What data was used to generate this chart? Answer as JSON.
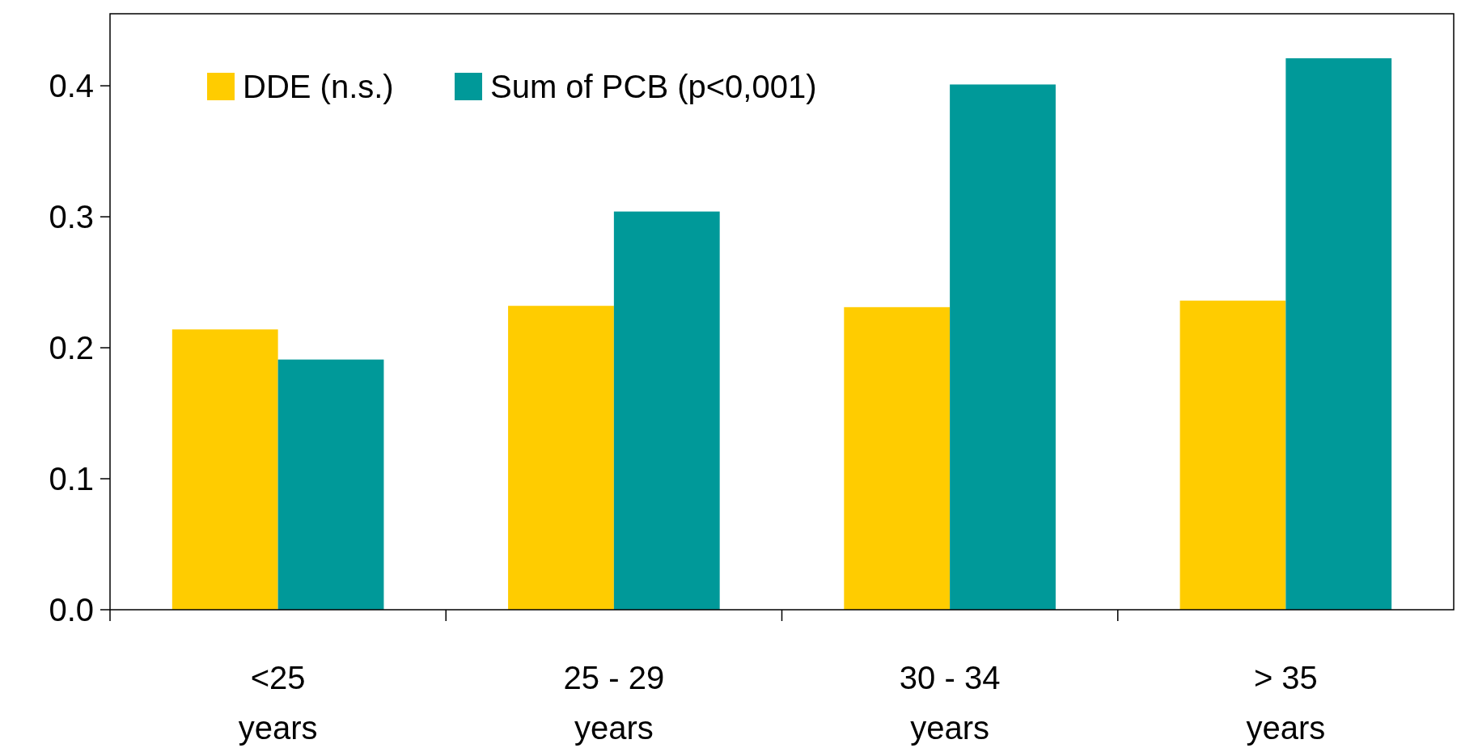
{
  "chart_data": {
    "type": "bar",
    "categories": [
      "<25 years",
      "25 - 29 years",
      "30 - 34 years",
      "> 35 years"
    ],
    "series": [
      {
        "name": "DDE (n.s.)",
        "color": "#ffcc00",
        "values": [
          0.214,
          0.232,
          0.231,
          0.236
        ]
      },
      {
        "name": "Sum of PCB (p<0,001)",
        "color": "#009999",
        "values": [
          0.191,
          0.304,
          0.401,
          0.421
        ]
      }
    ],
    "ylim": [
      0,
      0.455
    ],
    "yticks": [
      {
        "value": 0,
        "label": "0.0"
      },
      0.1,
      0.2,
      0.3,
      0.4
    ],
    "grid": false,
    "legend": "top left"
  }
}
